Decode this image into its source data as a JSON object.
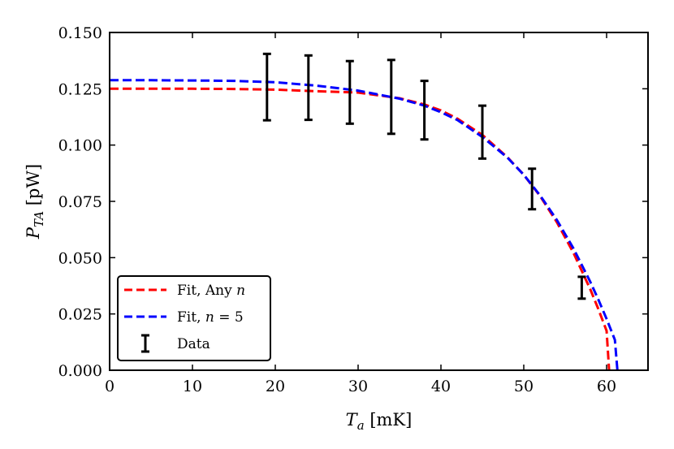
{
  "chart_data": {
    "type": "line",
    "xlabel_main": "T",
    "xlabel_sub": "a",
    "xlabel_unit": " [mK]",
    "ylabel_main": "P",
    "ylabel_sub": "TA",
    "ylabel_unit": " [pW]",
    "xlim": [
      0,
      65
    ],
    "ylim": [
      0,
      0.15
    ],
    "xticks": [
      0,
      10,
      20,
      30,
      40,
      50,
      60
    ],
    "xtick_labels": [
      "0",
      "10",
      "20",
      "30",
      "40",
      "50",
      "60"
    ],
    "yticks": [
      0,
      0.025,
      0.05,
      0.075,
      0.1,
      0.125,
      0.15
    ],
    "ytick_labels": [
      "0.000",
      "0.025",
      "0.050",
      "0.075",
      "0.100",
      "0.125",
      "0.150"
    ],
    "grid": false,
    "legend_position": "bottom-left",
    "series": [
      {
        "name": "Fit, Any n",
        "legend_text": "Fit, Any ",
        "legend_var": "n",
        "color": "#ff0000",
        "style": "dashed",
        "x": [
          0,
          5,
          10,
          15,
          20,
          25,
          30,
          35,
          38,
          40,
          42,
          45,
          48,
          50,
          52,
          54,
          56,
          58,
          59,
          60,
          60.3
        ],
        "y": [
          0.125,
          0.125,
          0.125,
          0.1249,
          0.1246,
          0.1239,
          0.1233,
          0.1208,
          0.118,
          0.1154,
          0.1117,
          0.1045,
          0.0947,
          0.0868,
          0.0772,
          0.0657,
          0.0521,
          0.0362,
          0.0272,
          0.0175,
          0.0
        ]
      },
      {
        "name": "Fit, n = 5",
        "legend_text": "Fit, ",
        "legend_var": "n",
        "legend_suffix": " = 5",
        "color": "#0000ff",
        "style": "dashed",
        "x": [
          0,
          5,
          10,
          15,
          20,
          25,
          30,
          35,
          38,
          40,
          42,
          45,
          48,
          50,
          52,
          54,
          56,
          58,
          59,
          60,
          61,
          61.3
        ],
        "y": [
          0.1288,
          0.1288,
          0.1287,
          0.1285,
          0.1279,
          0.1264,
          0.1242,
          0.1206,
          0.1175,
          0.1146,
          0.1111,
          0.1036,
          0.0945,
          0.0868,
          0.0775,
          0.0667,
          0.0541,
          0.0395,
          0.0314,
          0.0228,
          0.0135,
          0.0
        ]
      }
    ],
    "errorbars": {
      "name": "Data",
      "color": "#000000",
      "points": [
        {
          "x": 19,
          "ylow": 0.111,
          "yhigh": 0.1405
        },
        {
          "x": 24,
          "ylow": 0.1112,
          "yhigh": 0.1398
        },
        {
          "x": 29,
          "ylow": 0.1095,
          "yhigh": 0.1373
        },
        {
          "x": 34,
          "ylow": 0.105,
          "yhigh": 0.1378
        },
        {
          "x": 38,
          "ylow": 0.1025,
          "yhigh": 0.1285
        },
        {
          "x": 45,
          "ylow": 0.094,
          "yhigh": 0.1175
        },
        {
          "x": 51,
          "ylow": 0.0715,
          "yhigh": 0.0895
        },
        {
          "x": 57,
          "ylow": 0.0318,
          "yhigh": 0.0415
        }
      ]
    }
  }
}
